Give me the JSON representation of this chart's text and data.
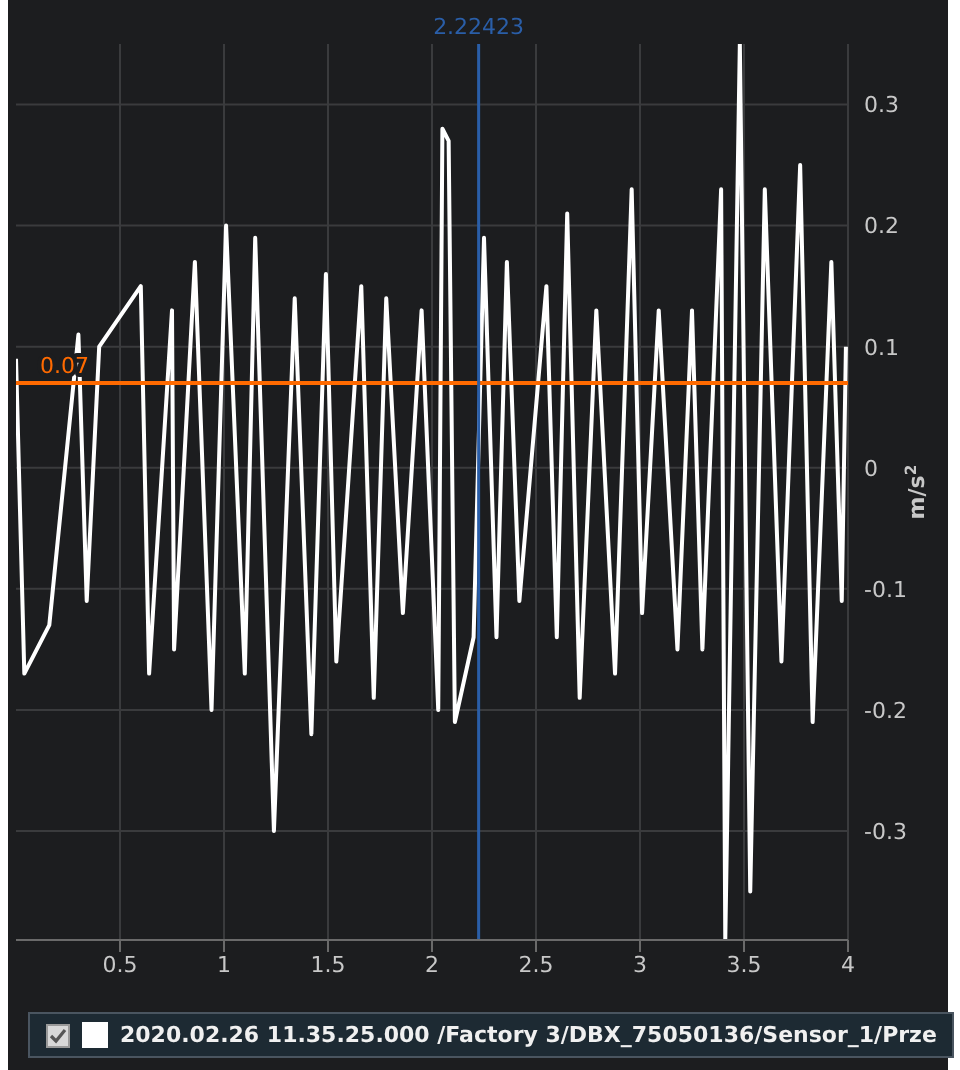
{
  "chart_data": {
    "type": "line",
    "ylabel": "m/s$^{2}$",
    "x": [
      0.0,
      0.04,
      0.16,
      0.3,
      0.34,
      0.4,
      0.6,
      0.64,
      0.75,
      0.76,
      0.86,
      0.94,
      1.01,
      1.1,
      1.15,
      1.24,
      1.34,
      1.42,
      1.49,
      1.54,
      1.66,
      1.72,
      1.78,
      1.86,
      1.95,
      2.03,
      2.05,
      2.08,
      2.11,
      2.2,
      2.25,
      2.31,
      2.36,
      2.42,
      2.55,
      2.6,
      2.65,
      2.71,
      2.79,
      2.88,
      2.96,
      3.01,
      3.09,
      3.18,
      3.25,
      3.3,
      3.39,
      3.41,
      3.48,
      3.53,
      3.6,
      3.68,
      3.77,
      3.83,
      3.92,
      3.97,
      3.99
    ],
    "series": [
      {
        "name": "2020.02.26 11.35.25.000 /Factory 3/DBX_75050136/Sensor_1/Prze",
        "color": "#ffffff",
        "values": [
          0.09,
          -0.17,
          -0.13,
          0.11,
          -0.11,
          0.1,
          0.15,
          -0.17,
          0.13,
          -0.15,
          0.17,
          -0.2,
          0.2,
          -0.17,
          0.19,
          -0.3,
          0.14,
          -0.22,
          0.16,
          -0.16,
          0.15,
          -0.19,
          0.14,
          -0.12,
          0.13,
          -0.2,
          0.28,
          0.27,
          -0.21,
          -0.14,
          0.19,
          -0.14,
          0.17,
          -0.11,
          0.15,
          -0.14,
          0.21,
          -0.19,
          0.13,
          -0.17,
          0.23,
          -0.12,
          0.13,
          -0.15,
          0.13,
          -0.15,
          0.23,
          -0.39,
          0.35,
          -0.35,
          0.23,
          -0.16,
          0.25,
          -0.21,
          0.17,
          -0.11,
          0.1
        ]
      }
    ],
    "xlim": [
      0,
      4
    ],
    "xticks": [
      0.5,
      1,
      1.5,
      2,
      2.5,
      3,
      3.5,
      4
    ],
    "ylim": [
      -0.39,
      0.35
    ],
    "yticks": [
      -0.3,
      -0.2,
      -0.1,
      0,
      0.1,
      0.2,
      0.3
    ],
    "ref_lines": [
      {
        "axis": "y",
        "value": 0.07,
        "label": "0.07",
        "color": "#ff6a00"
      },
      {
        "axis": "x",
        "value": 2.22423,
        "label": "2.22423",
        "color": "#2a5ea8"
      }
    ],
    "grid": true,
    "legend": "bottom",
    "marker": "none",
    "line_style": "solid"
  }
}
